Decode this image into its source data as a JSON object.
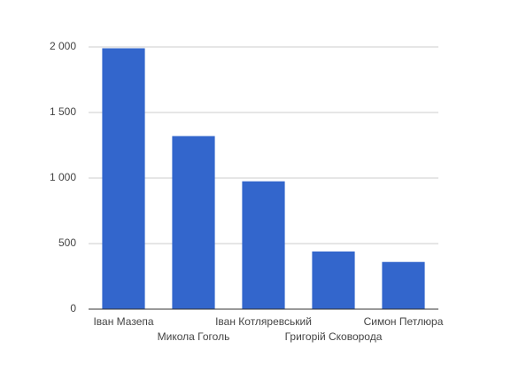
{
  "chart_data": {
    "type": "bar",
    "categories": [
      "Іван Мазепа",
      "Микола Гоголь",
      "Іван Котляревський",
      "Григорій Сковорода",
      "Симон Петлюра"
    ],
    "values": [
      1990,
      1320,
      975,
      440,
      360
    ],
    "color": "#3366cc",
    "ylim": [
      0,
      2000
    ],
    "yticks": [
      0,
      500,
      {
        "value": 1000,
        "label": "1 000"
      },
      {
        "value": 1500,
        "label": "1 500"
      },
      {
        "value": 2000,
        "label": "2 000"
      }
    ],
    "grid": true
  }
}
